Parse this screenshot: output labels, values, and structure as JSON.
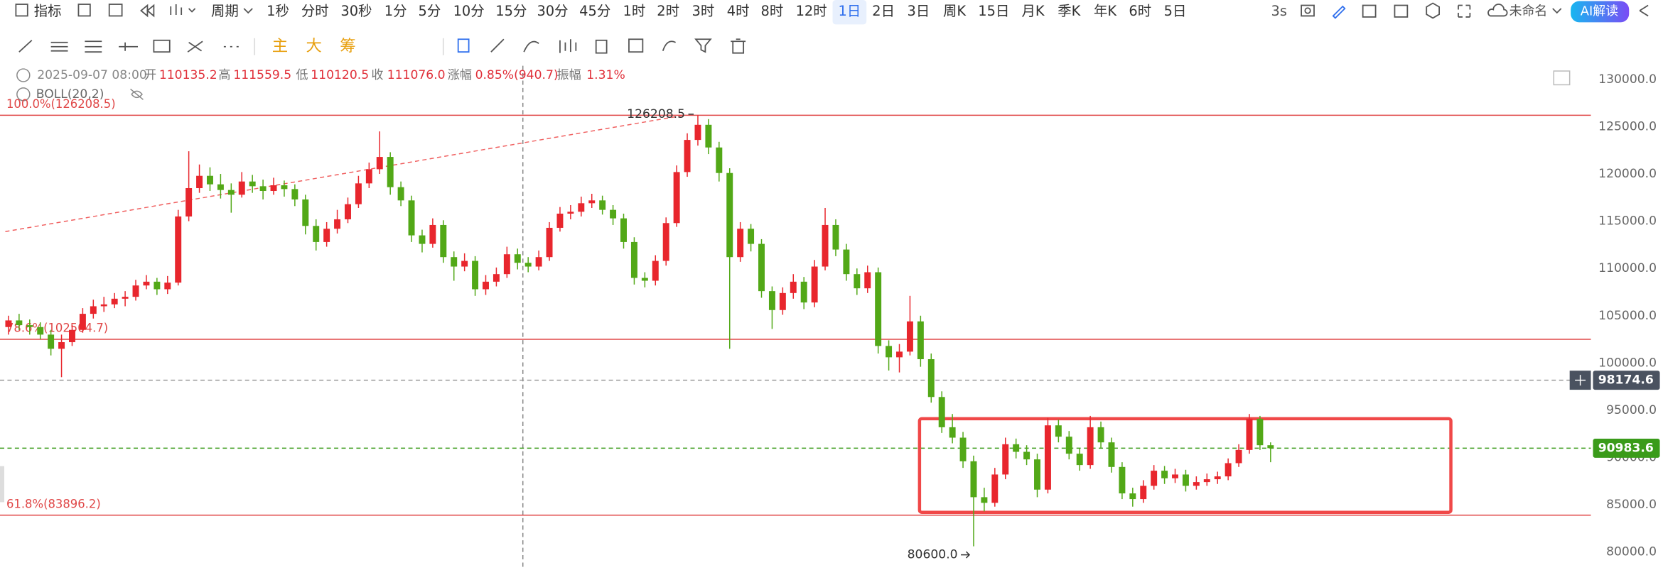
{
  "toolbar": {
    "menu": [
      "指标",
      "周期"
    ],
    "periods": [
      {
        "label": "1秒"
      },
      {
        "label": "分时"
      },
      {
        "label": "30秒"
      },
      {
        "label": "1分"
      },
      {
        "label": "5分"
      },
      {
        "label": "10分"
      },
      {
        "label": "15分"
      },
      {
        "label": "30分"
      },
      {
        "label": "45分"
      },
      {
        "label": "1时"
      },
      {
        "label": "2时"
      },
      {
        "label": "3时"
      },
      {
        "label": "4时"
      },
      {
        "label": "8时"
      },
      {
        "label": "12时"
      },
      {
        "label": "1日",
        "active": true
      },
      {
        "label": "2日"
      },
      {
        "label": "3日"
      },
      {
        "label": "周K"
      },
      {
        "label": "15日"
      },
      {
        "label": "月K"
      },
      {
        "label": "季K"
      },
      {
        "label": "年K"
      },
      {
        "label": "6时"
      },
      {
        "label": "5日"
      }
    ],
    "refresh": "3s",
    "layout_name": "未命名",
    "ai_button": "AI解读",
    "indicator_tabs": [
      "主",
      "大",
      "筹"
    ]
  },
  "info": {
    "time": "2025-09-07 08:00",
    "fields": [
      {
        "label": "开",
        "value": "110135.2"
      },
      {
        "label": "高",
        "value": "111559.5"
      },
      {
        "label": "低",
        "value": "110120.5"
      },
      {
        "label": "收",
        "value": "111076.0"
      },
      {
        "label": "涨幅",
        "value": "0.85%(940.7)"
      },
      {
        "label": "振幅",
        "value": "1.31%"
      }
    ],
    "indicator": "BOLL(20,2)"
  },
  "chart_data": {
    "type": "candlestick",
    "up_color": "#e8262d",
    "down_color": "#52a817",
    "ylim": [
      78100,
      131450
    ],
    "yticks": [
      {
        "value": 80000,
        "label": "80000.0"
      },
      {
        "value": 85000,
        "label": "85000.0"
      },
      {
        "value": 90000,
        "label": "90000.0"
      },
      {
        "value": 95000,
        "label": "95000.0"
      },
      {
        "value": 100000,
        "label": "100000.0"
      },
      {
        "value": 105000,
        "label": "105000.0"
      },
      {
        "value": 110000,
        "label": "110000.0"
      },
      {
        "value": 115000,
        "label": "115000.0"
      },
      {
        "value": 120000,
        "label": "120000.0"
      },
      {
        "value": 125000,
        "label": "125000.0"
      },
      {
        "value": 130000,
        "label": "130000.0"
      }
    ],
    "grid": false,
    "fib_levels": [
      {
        "value": 126208.5,
        "label": "100.0%(126208.5)"
      },
      {
        "value": 102504.7,
        "label": "78.6%(102504.7)"
      },
      {
        "value": 83896.2,
        "label": "61.8%(83896.2)"
      }
    ],
    "fib_color": "#e04848",
    "price_lines": [
      {
        "value": 98174.6,
        "label": "98174.6",
        "color": "#999999",
        "label_bg": "#4a5260"
      },
      {
        "value": 90983.6,
        "label": "90983.6",
        "color": "#3a9b1a",
        "label_bg": "#3a9b1a"
      }
    ],
    "annotations": [
      {
        "text": "126208.5",
        "value": 126208.5,
        "at": "high"
      },
      {
        "text": "80600.0",
        "value": 80600,
        "at": "low"
      }
    ],
    "box": {
      "top": 94100,
      "bottom": 84200,
      "color": "#f04848"
    },
    "trendline": {
      "from": 113900,
      "to": 126208.5,
      "color": "#f06060"
    },
    "ohlc": [
      [
        103800,
        105000,
        103000,
        104500
      ],
      [
        104500,
        105200,
        103500,
        104000
      ],
      [
        104000,
        104600,
        103000,
        103800
      ],
      [
        103800,
        104300,
        102500,
        103000
      ],
      [
        103000,
        103500,
        100800,
        101500
      ],
      [
        101500,
        103000,
        98500,
        102200
      ],
      [
        102200,
        104000,
        101800,
        103500
      ],
      [
        103500,
        105800,
        103200,
        105200
      ],
      [
        105200,
        106700,
        104700,
        106000
      ],
      [
        106000,
        107000,
        105400,
        106200
      ],
      [
        106200,
        107400,
        105800,
        106800
      ],
      [
        106800,
        107600,
        106000,
        107000
      ],
      [
        107000,
        108800,
        106600,
        108200
      ],
      [
        108200,
        109300,
        107800,
        108600
      ],
      [
        108600,
        109000,
        107200,
        107800
      ],
      [
        107800,
        109200,
        107300,
        108500
      ],
      [
        108500,
        116200,
        108200,
        115500
      ],
      [
        115500,
        122400,
        115000,
        118500
      ],
      [
        118500,
        121000,
        118000,
        119800
      ],
      [
        119800,
        120700,
        118200,
        118900
      ],
      [
        118900,
        120000,
        117400,
        118300
      ],
      [
        118300,
        119000,
        115900,
        117800
      ],
      [
        117800,
        120200,
        117500,
        119200
      ],
      [
        119200,
        119900,
        118000,
        118700
      ],
      [
        118700,
        119400,
        117300,
        118200
      ],
      [
        118200,
        119600,
        117800,
        118800
      ],
      [
        118800,
        119300,
        117600,
        118400
      ],
      [
        118400,
        118900,
        116600,
        117300
      ],
      [
        117300,
        117800,
        113600,
        114500
      ],
      [
        114500,
        115200,
        111900,
        112800
      ],
      [
        112800,
        114900,
        112300,
        114200
      ],
      [
        114200,
        116200,
        113700,
        115200
      ],
      [
        115200,
        117500,
        114800,
        116800
      ],
      [
        116800,
        119800,
        116400,
        119000
      ],
      [
        119000,
        121200,
        118500,
        120500
      ],
      [
        120500,
        124500,
        120000,
        121800
      ],
      [
        121800,
        122300,
        117800,
        118600
      ],
      [
        118600,
        119200,
        116600,
        117200
      ],
      [
        117200,
        117700,
        112800,
        113500
      ],
      [
        113500,
        114100,
        111700,
        112600
      ],
      [
        112600,
        115300,
        112200,
        114600
      ],
      [
        114600,
        115100,
        110600,
        111200
      ],
      [
        111200,
        111800,
        108700,
        110200
      ],
      [
        110200,
        111600,
        109700,
        110800
      ],
      [
        110800,
        111300,
        107100,
        107800
      ],
      [
        107800,
        109300,
        107200,
        108600
      ],
      [
        108600,
        110100,
        108100,
        109400
      ],
      [
        109400,
        112300,
        109000,
        111500
      ],
      [
        111500,
        112100,
        109900,
        110600
      ],
      [
        110600,
        111200,
        109600,
        110200
      ],
      [
        110200,
        111900,
        109800,
        111200
      ],
      [
        111200,
        114900,
        110800,
        114300
      ],
      [
        114300,
        116500,
        113900,
        115800
      ],
      [
        115800,
        116700,
        115200,
        116000
      ],
      [
        116000,
        117600,
        115500,
        116900
      ],
      [
        116900,
        117900,
        116400,
        117200
      ],
      [
        117200,
        117700,
        115700,
        116200
      ],
      [
        116200,
        116700,
        114600,
        115300
      ],
      [
        115300,
        115800,
        112100,
        112800
      ],
      [
        112800,
        113300,
        108300,
        109000
      ],
      [
        109000,
        109600,
        108000,
        108700
      ],
      [
        108700,
        111400,
        108200,
        110800
      ],
      [
        110800,
        115400,
        110300,
        114800
      ],
      [
        114800,
        120900,
        114400,
        120200
      ],
      [
        120200,
        124300,
        119700,
        123600
      ],
      [
        123600,
        126208.5,
        123000,
        125200
      ],
      [
        125200,
        125800,
        122100,
        122800
      ],
      [
        122800,
        123400,
        119200,
        120100
      ],
      [
        120100,
        120600,
        101500,
        111200
      ],
      [
        111200,
        114900,
        110700,
        114200
      ],
      [
        114200,
        114700,
        111800,
        112600
      ],
      [
        112600,
        113100,
        106900,
        107600
      ],
      [
        107600,
        108100,
        103600,
        105600
      ],
      [
        105600,
        108000,
        105100,
        107400
      ],
      [
        107400,
        109400,
        106800,
        108600
      ],
      [
        108600,
        109100,
        105700,
        106400
      ],
      [
        106400,
        110900,
        105900,
        110200
      ],
      [
        110200,
        116400,
        109800,
        114600
      ],
      [
        114600,
        115200,
        111300,
        112000
      ],
      [
        112000,
        112600,
        108700,
        109400
      ],
      [
        109400,
        110000,
        107200,
        107900
      ],
      [
        107900,
        110300,
        107400,
        109600
      ],
      [
        109600,
        110100,
        101000,
        101800
      ],
      [
        101800,
        102400,
        99200,
        100600
      ],
      [
        100600,
        102000,
        99000,
        101200
      ],
      [
        101200,
        107100,
        100800,
        104400
      ],
      [
        104400,
        105000,
        99600,
        100400
      ],
      [
        100400,
        101000,
        95800,
        96400
      ],
      [
        96400,
        97000,
        92600,
        93200
      ],
      [
        93200,
        94600,
        91500,
        92100
      ],
      [
        92100,
        92700,
        88900,
        89600
      ],
      [
        89600,
        90200,
        80600,
        85800
      ],
      [
        85800,
        86800,
        84300,
        85200
      ],
      [
        85200,
        88900,
        84800,
        88200
      ],
      [
        88200,
        92100,
        87700,
        91400
      ],
      [
        91400,
        92000,
        89900,
        90600
      ],
      [
        90600,
        91300,
        89200,
        89800
      ],
      [
        89800,
        90400,
        85800,
        86600
      ],
      [
        86600,
        94200,
        86200,
        93400
      ],
      [
        93400,
        94000,
        91600,
        92200
      ],
      [
        92200,
        92800,
        89800,
        90400
      ],
      [
        90400,
        91000,
        88600,
        89200
      ],
      [
        89200,
        94400,
        88800,
        93200
      ],
      [
        93200,
        93800,
        91000,
        91600
      ],
      [
        91600,
        92100,
        88400,
        89000
      ],
      [
        89000,
        89500,
        85600,
        86200
      ],
      [
        86200,
        86800,
        84800,
        85600
      ],
      [
        85600,
        87600,
        85200,
        87000
      ],
      [
        87000,
        89200,
        86600,
        88600
      ],
      [
        88600,
        89100,
        87200,
        87800
      ],
      [
        87800,
        88800,
        87300,
        88200
      ],
      [
        88200,
        88700,
        86400,
        87000
      ],
      [
        87000,
        88000,
        86600,
        87400
      ],
      [
        87400,
        88300,
        87000,
        87700
      ],
      [
        87700,
        88500,
        87200,
        88000
      ],
      [
        88000,
        89900,
        87600,
        89400
      ],
      [
        89400,
        91400,
        89000,
        90800
      ],
      [
        90800,
        94600,
        90400,
        94100
      ],
      [
        94100,
        94400,
        90800,
        91300
      ],
      [
        91300,
        91600,
        89500,
        90983.6
      ]
    ]
  }
}
